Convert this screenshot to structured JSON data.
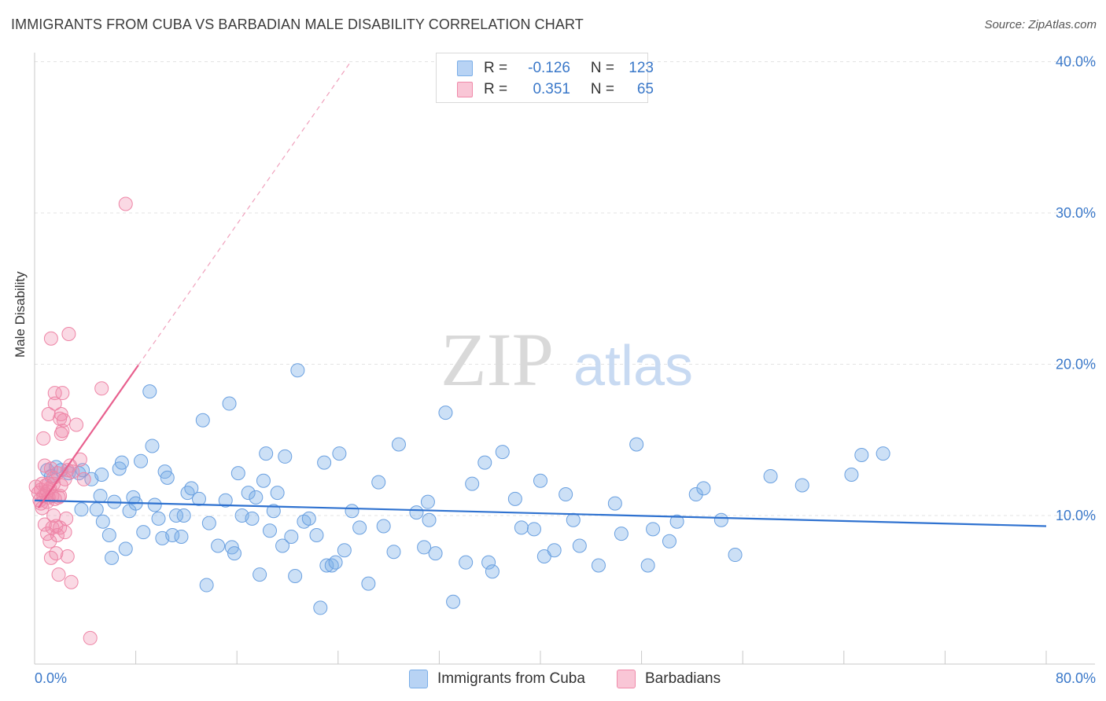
{
  "title": "IMMIGRANTS FROM CUBA VS BARBADIAN MALE DISABILITY CORRELATION CHART",
  "source": "Source: ZipAtlas.com",
  "watermark": {
    "zip": "ZIP",
    "atlas": "atlas"
  },
  "legend": {
    "series1": {
      "r_label": "R =",
      "r_value": "-0.126",
      "n_label": "N =",
      "n_value": "123"
    },
    "series2": {
      "r_label": "R =",
      "r_value": "0.351",
      "n_label": "N =",
      "n_value": "65"
    }
  },
  "colors": {
    "blue": "#7aaee8",
    "blue_line": "#2f72d0",
    "pink": "#f08aaa",
    "pink_line": "#e8608e",
    "axis_text": "#3a78c9"
  },
  "chart_data": {
    "type": "scatter",
    "title": "IMMIGRANTS FROM CUBA VS BARBADIAN MALE DISABILITY CORRELATION CHART",
    "xlabel": "",
    "ylabel": "Male Disability",
    "xlim": [
      0,
      80
    ],
    "ylim": [
      0,
      41
    ],
    "x_tick_labels": {
      "min": "0.0%",
      "max": "80.0%"
    },
    "y_ticks": [
      {
        "value": 10,
        "label": "10.0%"
      },
      {
        "value": 20,
        "label": "20.0%"
      },
      {
        "value": 30,
        "label": "30.0%"
      },
      {
        "value": 40,
        "label": "40.0%"
      }
    ],
    "series": [
      {
        "name": "Immigrants from Cuba",
        "color": "#7aaee8",
        "trend": {
          "x": [
            0,
            80
          ],
          "y": [
            11.0,
            9.3
          ],
          "dashed": false
        },
        "points": [
          [
            1.0,
            13.0
          ],
          [
            1.3,
            12.6
          ],
          [
            1.7,
            13.2
          ],
          [
            2.1,
            13.0
          ],
          [
            2.7,
            12.8
          ],
          [
            3.5,
            12.8
          ],
          [
            3.7,
            10.4
          ],
          [
            3.8,
            13.0
          ],
          [
            4.5,
            12.4
          ],
          [
            4.9,
            10.4
          ],
          [
            5.2,
            11.3
          ],
          [
            5.3,
            12.7
          ],
          [
            5.4,
            9.6
          ],
          [
            5.9,
            8.7
          ],
          [
            6.1,
            7.2
          ],
          [
            6.3,
            10.9
          ],
          [
            6.7,
            13.1
          ],
          [
            6.9,
            13.5
          ],
          [
            7.2,
            7.8
          ],
          [
            7.5,
            10.3
          ],
          [
            7.8,
            11.2
          ],
          [
            8.0,
            10.8
          ],
          [
            8.4,
            13.6
          ],
          [
            8.6,
            8.9
          ],
          [
            9.1,
            18.2
          ],
          [
            9.3,
            14.6
          ],
          [
            9.5,
            10.7
          ],
          [
            9.8,
            9.8
          ],
          [
            10.1,
            8.5
          ],
          [
            10.3,
            12.9
          ],
          [
            10.5,
            12.5
          ],
          [
            10.9,
            8.7
          ],
          [
            11.2,
            10.0
          ],
          [
            11.6,
            8.6
          ],
          [
            11.8,
            10.0
          ],
          [
            12.1,
            11.5
          ],
          [
            12.4,
            11.8
          ],
          [
            13.0,
            11.1
          ],
          [
            13.3,
            16.3
          ],
          [
            13.6,
            5.4
          ],
          [
            13.8,
            9.5
          ],
          [
            14.5,
            8.0
          ],
          [
            15.1,
            11.0
          ],
          [
            15.4,
            17.4
          ],
          [
            15.6,
            7.9
          ],
          [
            15.8,
            7.5
          ],
          [
            16.1,
            12.8
          ],
          [
            16.4,
            10.0
          ],
          [
            16.9,
            11.5
          ],
          [
            17.2,
            9.8
          ],
          [
            17.5,
            11.2
          ],
          [
            17.8,
            6.1
          ],
          [
            18.1,
            12.3
          ],
          [
            18.3,
            14.1
          ],
          [
            18.6,
            9.0
          ],
          [
            18.9,
            10.3
          ],
          [
            19.2,
            11.5
          ],
          [
            19.6,
            8.0
          ],
          [
            19.8,
            13.9
          ],
          [
            20.3,
            8.6
          ],
          [
            20.6,
            6.0
          ],
          [
            20.8,
            19.6
          ],
          [
            21.3,
            9.6
          ],
          [
            21.7,
            9.8
          ],
          [
            22.3,
            8.7
          ],
          [
            22.6,
            3.9
          ],
          [
            22.9,
            13.5
          ],
          [
            23.1,
            6.7
          ],
          [
            23.5,
            6.7
          ],
          [
            23.8,
            6.9
          ],
          [
            24.1,
            14.1
          ],
          [
            24.5,
            7.7
          ],
          [
            25.1,
            10.3
          ],
          [
            25.7,
            9.2
          ],
          [
            26.4,
            5.5
          ],
          [
            27.2,
            12.2
          ],
          [
            27.6,
            9.3
          ],
          [
            28.4,
            7.6
          ],
          [
            28.8,
            14.7
          ],
          [
            30.2,
            10.2
          ],
          [
            30.8,
            7.9
          ],
          [
            31.1,
            10.9
          ],
          [
            31.2,
            9.7
          ],
          [
            31.7,
            7.5
          ],
          [
            32.5,
            16.8
          ],
          [
            33.1,
            4.3
          ],
          [
            34.1,
            6.9
          ],
          [
            34.6,
            12.1
          ],
          [
            35.6,
            13.5
          ],
          [
            35.9,
            6.9
          ],
          [
            36.2,
            6.3
          ],
          [
            37.0,
            14.2
          ],
          [
            38.0,
            11.1
          ],
          [
            38.5,
            9.2
          ],
          [
            39.5,
            9.1
          ],
          [
            40.0,
            12.3
          ],
          [
            40.3,
            7.3
          ],
          [
            41.1,
            7.7
          ],
          [
            42.0,
            11.4
          ],
          [
            42.6,
            9.7
          ],
          [
            43.1,
            8.0
          ],
          [
            44.6,
            6.7
          ],
          [
            45.9,
            10.8
          ],
          [
            46.4,
            8.8
          ],
          [
            47.6,
            14.7
          ],
          [
            48.5,
            6.7
          ],
          [
            48.9,
            9.1
          ],
          [
            50.2,
            8.3
          ],
          [
            50.8,
            9.6
          ],
          [
            52.3,
            11.4
          ],
          [
            52.9,
            11.8
          ],
          [
            54.3,
            9.7
          ],
          [
            55.4,
            7.4
          ],
          [
            58.2,
            12.6
          ],
          [
            60.7,
            12.0
          ],
          [
            64.6,
            12.7
          ],
          [
            65.4,
            14.0
          ],
          [
            67.1,
            14.1
          ]
        ]
      },
      {
        "name": "Barbadians",
        "color": "#f08aaa",
        "trend": {
          "x": [
            0.3,
            25
          ],
          "y": [
            10.5,
            40
          ],
          "dashed": true,
          "solid_until_x": 8.2
        },
        "points": [
          [
            0.1,
            11.9
          ],
          [
            0.3,
            11.5
          ],
          [
            0.4,
            11.0
          ],
          [
            0.5,
            11.7
          ],
          [
            0.5,
            10.8
          ],
          [
            0.6,
            12.1
          ],
          [
            0.6,
            10.5
          ],
          [
            0.7,
            11.3
          ],
          [
            0.7,
            15.1
          ],
          [
            0.8,
            9.4
          ],
          [
            0.8,
            13.3
          ],
          [
            0.9,
            11.4
          ],
          [
            0.9,
            12.0
          ],
          [
            1.0,
            11.6
          ],
          [
            1.0,
            10.9
          ],
          [
            1.0,
            8.8
          ],
          [
            1.1,
            12.1
          ],
          [
            1.1,
            11.2
          ],
          [
            1.1,
            16.7
          ],
          [
            1.2,
            11.8
          ],
          [
            1.2,
            8.3
          ],
          [
            1.3,
            13.1
          ],
          [
            1.3,
            7.2
          ],
          [
            1.3,
            21.7
          ],
          [
            1.4,
            11.3
          ],
          [
            1.4,
            9.2
          ],
          [
            1.5,
            12.5
          ],
          [
            1.5,
            10.0
          ],
          [
            1.5,
            12.1
          ],
          [
            1.6,
            17.4
          ],
          [
            1.6,
            18.1
          ],
          [
            1.6,
            11.1
          ],
          [
            1.7,
            9.3
          ],
          [
            1.7,
            7.5
          ],
          [
            1.8,
            8.7
          ],
          [
            1.8,
            12.8
          ],
          [
            1.9,
            6.1
          ],
          [
            1.9,
            11.2
          ],
          [
            2.0,
            16.4
          ],
          [
            2.0,
            9.2
          ],
          [
            2.0,
            11.3
          ],
          [
            2.1,
            12.0
          ],
          [
            2.1,
            15.4
          ],
          [
            2.1,
            16.7
          ],
          [
            2.2,
            18.1
          ],
          [
            2.2,
            15.6
          ],
          [
            2.3,
            16.3
          ],
          [
            2.4,
            12.4
          ],
          [
            2.4,
            8.9
          ],
          [
            2.5,
            9.8
          ],
          [
            2.6,
            13.0
          ],
          [
            2.6,
            7.3
          ],
          [
            2.7,
            22.0
          ],
          [
            2.8,
            13.3
          ],
          [
            2.9,
            5.6
          ],
          [
            3.0,
            12.9
          ],
          [
            3.3,
            16.0
          ],
          [
            3.6,
            13.7
          ],
          [
            3.9,
            12.4
          ],
          [
            4.4,
            1.9
          ],
          [
            5.3,
            18.4
          ],
          [
            7.2,
            30.6
          ]
        ]
      }
    ]
  },
  "bottom_legend": {
    "item1": "Immigrants from Cuba",
    "item2": "Barbadians"
  }
}
